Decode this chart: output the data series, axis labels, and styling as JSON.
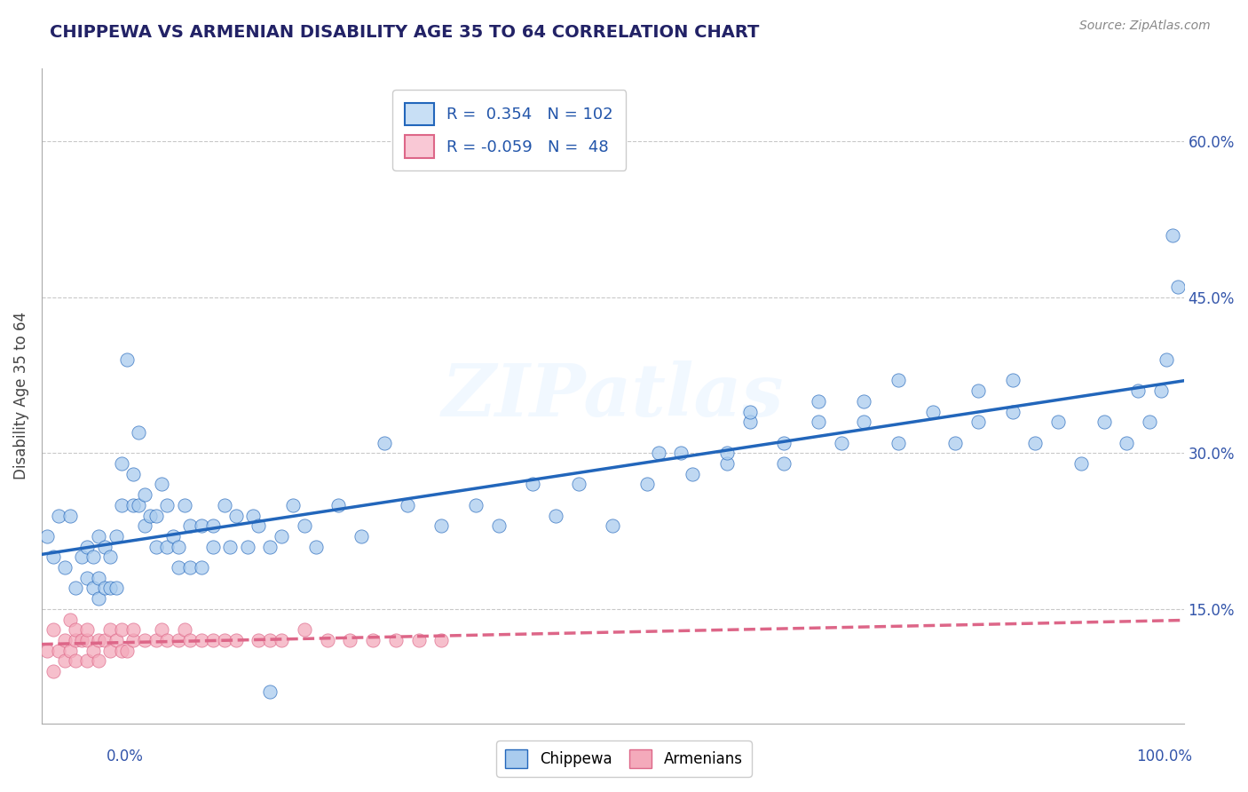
{
  "title": "CHIPPEWA VS ARMENIAN DISABILITY AGE 35 TO 64 CORRELATION CHART",
  "source_text": "Source: ZipAtlas.com",
  "ylabel": "Disability Age 35 to 64",
  "ytick_vals": [
    0.15,
    0.3,
    0.45,
    0.6
  ],
  "xlim": [
    0.0,
    1.0
  ],
  "ylim": [
    0.04,
    0.67
  ],
  "chippewa_R": 0.354,
  "chippewa_N": 102,
  "armenian_R": -0.059,
  "armenian_N": 48,
  "chippewa_color": "#aaccee",
  "armenian_color": "#f4aabb",
  "chippewa_line_color": "#2266bb",
  "armenian_line_color": "#dd6688",
  "legend_box_color": "#c8dff5",
  "legend_box_color2": "#f9c8d5",
  "chippewa_x": [
    0.005,
    0.01,
    0.015,
    0.02,
    0.025,
    0.03,
    0.035,
    0.04,
    0.04,
    0.045,
    0.045,
    0.05,
    0.05,
    0.05,
    0.055,
    0.055,
    0.06,
    0.06,
    0.065,
    0.065,
    0.07,
    0.07,
    0.075,
    0.08,
    0.08,
    0.085,
    0.085,
    0.09,
    0.09,
    0.095,
    0.1,
    0.1,
    0.105,
    0.11,
    0.11,
    0.115,
    0.12,
    0.12,
    0.125,
    0.13,
    0.13,
    0.14,
    0.14,
    0.15,
    0.15,
    0.16,
    0.165,
    0.17,
    0.18,
    0.185,
    0.19,
    0.2,
    0.2,
    0.21,
    0.22,
    0.23,
    0.24,
    0.26,
    0.28,
    0.3,
    0.32,
    0.35,
    0.38,
    0.4,
    0.43,
    0.45,
    0.47,
    0.5,
    0.53,
    0.56,
    0.6,
    0.62,
    0.65,
    0.68,
    0.7,
    0.72,
    0.75,
    0.78,
    0.8,
    0.82,
    0.85,
    0.87,
    0.89,
    0.91,
    0.93,
    0.95,
    0.96,
    0.97,
    0.98,
    0.985,
    0.99,
    0.995,
    0.54,
    0.57,
    0.6,
    0.62,
    0.65,
    0.68,
    0.72,
    0.75,
    0.82,
    0.85
  ],
  "chippewa_y": [
    0.22,
    0.2,
    0.24,
    0.19,
    0.24,
    0.17,
    0.2,
    0.18,
    0.21,
    0.17,
    0.2,
    0.16,
    0.18,
    0.22,
    0.17,
    0.21,
    0.17,
    0.2,
    0.17,
    0.22,
    0.25,
    0.29,
    0.39,
    0.25,
    0.28,
    0.25,
    0.32,
    0.23,
    0.26,
    0.24,
    0.21,
    0.24,
    0.27,
    0.21,
    0.25,
    0.22,
    0.19,
    0.21,
    0.25,
    0.19,
    0.23,
    0.19,
    0.23,
    0.21,
    0.23,
    0.25,
    0.21,
    0.24,
    0.21,
    0.24,
    0.23,
    0.07,
    0.21,
    0.22,
    0.25,
    0.23,
    0.21,
    0.25,
    0.22,
    0.31,
    0.25,
    0.23,
    0.25,
    0.23,
    0.27,
    0.24,
    0.27,
    0.23,
    0.27,
    0.3,
    0.29,
    0.33,
    0.29,
    0.33,
    0.31,
    0.35,
    0.37,
    0.34,
    0.31,
    0.33,
    0.37,
    0.31,
    0.33,
    0.29,
    0.33,
    0.31,
    0.36,
    0.33,
    0.36,
    0.39,
    0.51,
    0.46,
    0.3,
    0.28,
    0.3,
    0.34,
    0.31,
    0.35,
    0.33,
    0.31,
    0.36,
    0.34
  ],
  "armenian_x": [
    0.005,
    0.01,
    0.01,
    0.015,
    0.02,
    0.02,
    0.025,
    0.025,
    0.03,
    0.03,
    0.03,
    0.035,
    0.04,
    0.04,
    0.04,
    0.045,
    0.05,
    0.05,
    0.055,
    0.06,
    0.06,
    0.065,
    0.07,
    0.07,
    0.075,
    0.08,
    0.08,
    0.09,
    0.1,
    0.105,
    0.11,
    0.12,
    0.125,
    0.13,
    0.14,
    0.15,
    0.16,
    0.17,
    0.19,
    0.2,
    0.21,
    0.23,
    0.25,
    0.27,
    0.29,
    0.31,
    0.33,
    0.35
  ],
  "armenian_y": [
    0.11,
    0.09,
    0.13,
    0.11,
    0.1,
    0.12,
    0.11,
    0.14,
    0.1,
    0.12,
    0.13,
    0.12,
    0.1,
    0.12,
    0.13,
    0.11,
    0.1,
    0.12,
    0.12,
    0.11,
    0.13,
    0.12,
    0.11,
    0.13,
    0.11,
    0.12,
    0.13,
    0.12,
    0.12,
    0.13,
    0.12,
    0.12,
    0.13,
    0.12,
    0.12,
    0.12,
    0.12,
    0.12,
    0.12,
    0.12,
    0.12,
    0.13,
    0.12,
    0.12,
    0.12,
    0.12,
    0.12,
    0.12
  ],
  "watermark": "ZIPatlas",
  "background_color": "#ffffff",
  "grid_color": "#bbbbbb"
}
